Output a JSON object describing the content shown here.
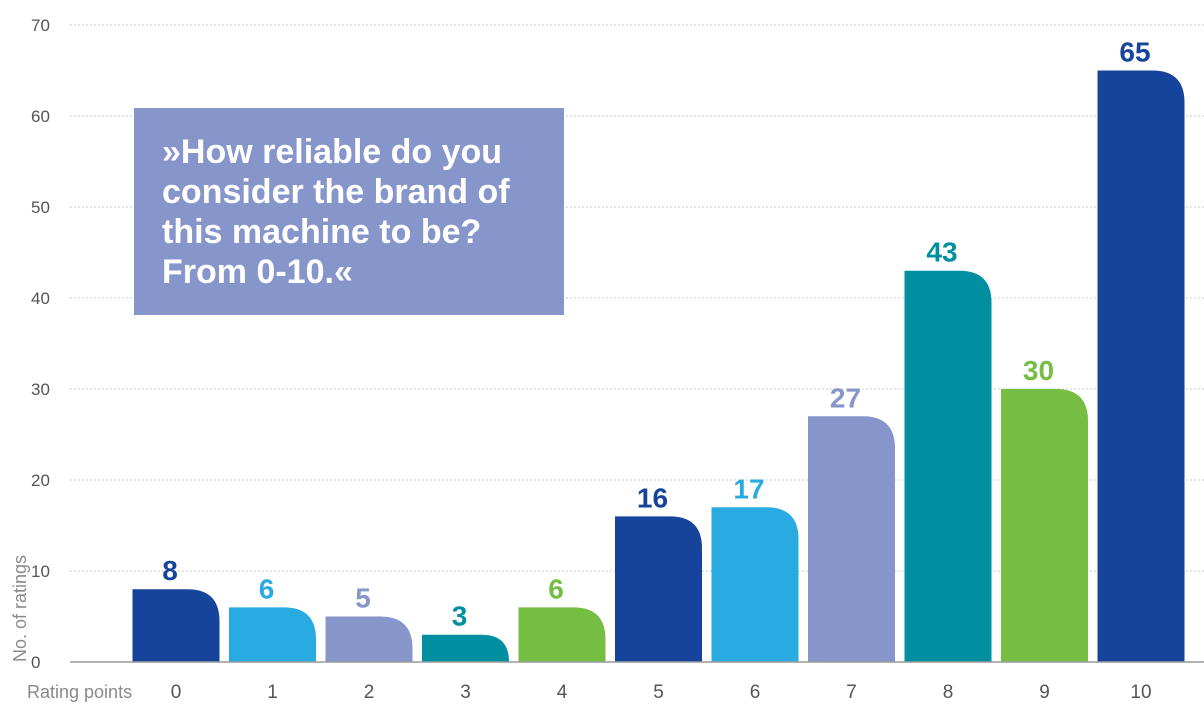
{
  "colors": {
    "dark_blue": "#17449b",
    "light_blue": "#29abe2",
    "lavender": "#8796ca",
    "teal": "#008fa0",
    "green": "#76bd44"
  },
  "question_box": {
    "text": "»How reliable do you consider the brand of this machine to be? From 0-10.«",
    "color": "#8796ca"
  },
  "chart_data": {
    "type": "bar",
    "xlabel": "Rating points",
    "ylabel": "No. of ratings",
    "ylim": [
      0,
      70
    ],
    "yticks": [
      0,
      10,
      20,
      30,
      40,
      50,
      60,
      70
    ],
    "grid": true,
    "categories": [
      "0",
      "1",
      "2",
      "3",
      "4",
      "5",
      "6",
      "7",
      "8",
      "9",
      "10"
    ],
    "values": [
      8,
      6,
      5,
      3,
      6,
      16,
      17,
      27,
      43,
      30,
      65
    ],
    "bar_colors": [
      "#17449b",
      "#29abe2",
      "#8796ca",
      "#008fa0",
      "#76bd44",
      "#17449b",
      "#29abe2",
      "#8796ca",
      "#008fa0",
      "#76bd44",
      "#17449b"
    ]
  }
}
